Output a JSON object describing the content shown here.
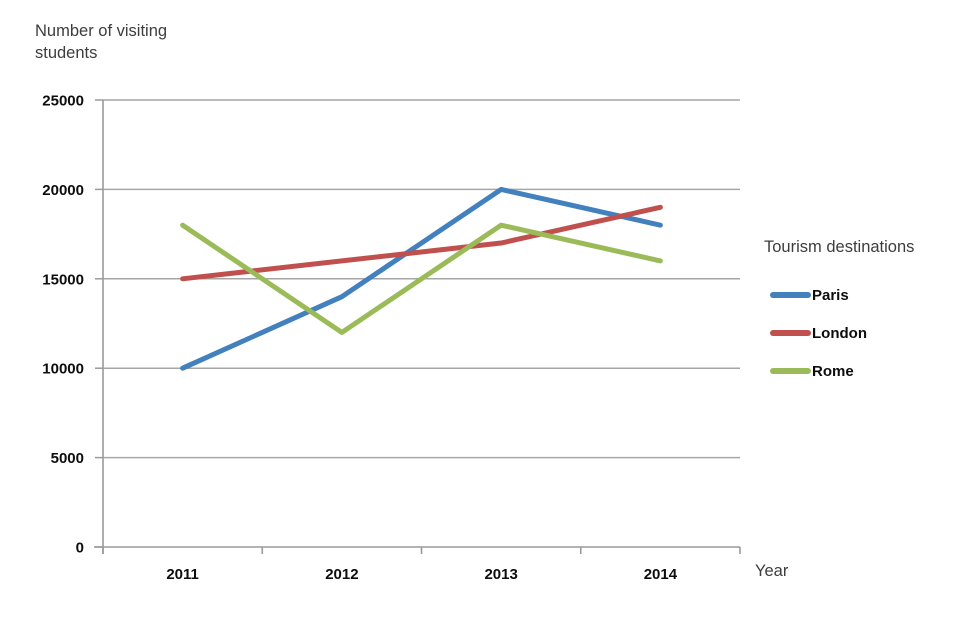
{
  "page": {
    "background_color": "#ffffff"
  },
  "chart_data": {
    "type": "line",
    "title": "",
    "ylabel": "Number of visiting students",
    "xlabel": "Year",
    "categories": [
      "2011",
      "2012",
      "2013",
      "2014"
    ],
    "series": [
      {
        "name": "Paris",
        "color": "#4280be",
        "values": [
          10000,
          14000,
          20000,
          18000
        ]
      },
      {
        "name": "London",
        "color": "#c0504d",
        "values": [
          15000,
          16000,
          17000,
          19000
        ]
      },
      {
        "name": "Rome",
        "color": "#9bbb59",
        "values": [
          18000,
          12000,
          18000,
          16000
        ]
      }
    ],
    "ylim": [
      0,
      25000
    ],
    "ytick_step": 5000,
    "ytick_labels": [
      "0",
      "5000",
      "10000",
      "15000",
      "20000",
      "25000"
    ],
    "grid": true,
    "legend": {
      "title": "Tourism destinations",
      "position": "right"
    },
    "colors": {
      "gridline": "#a6a6a6",
      "axis": "#9a9a9a",
      "tick_label": "#0d0d0d",
      "axis_title": "#3d3d3d"
    }
  }
}
